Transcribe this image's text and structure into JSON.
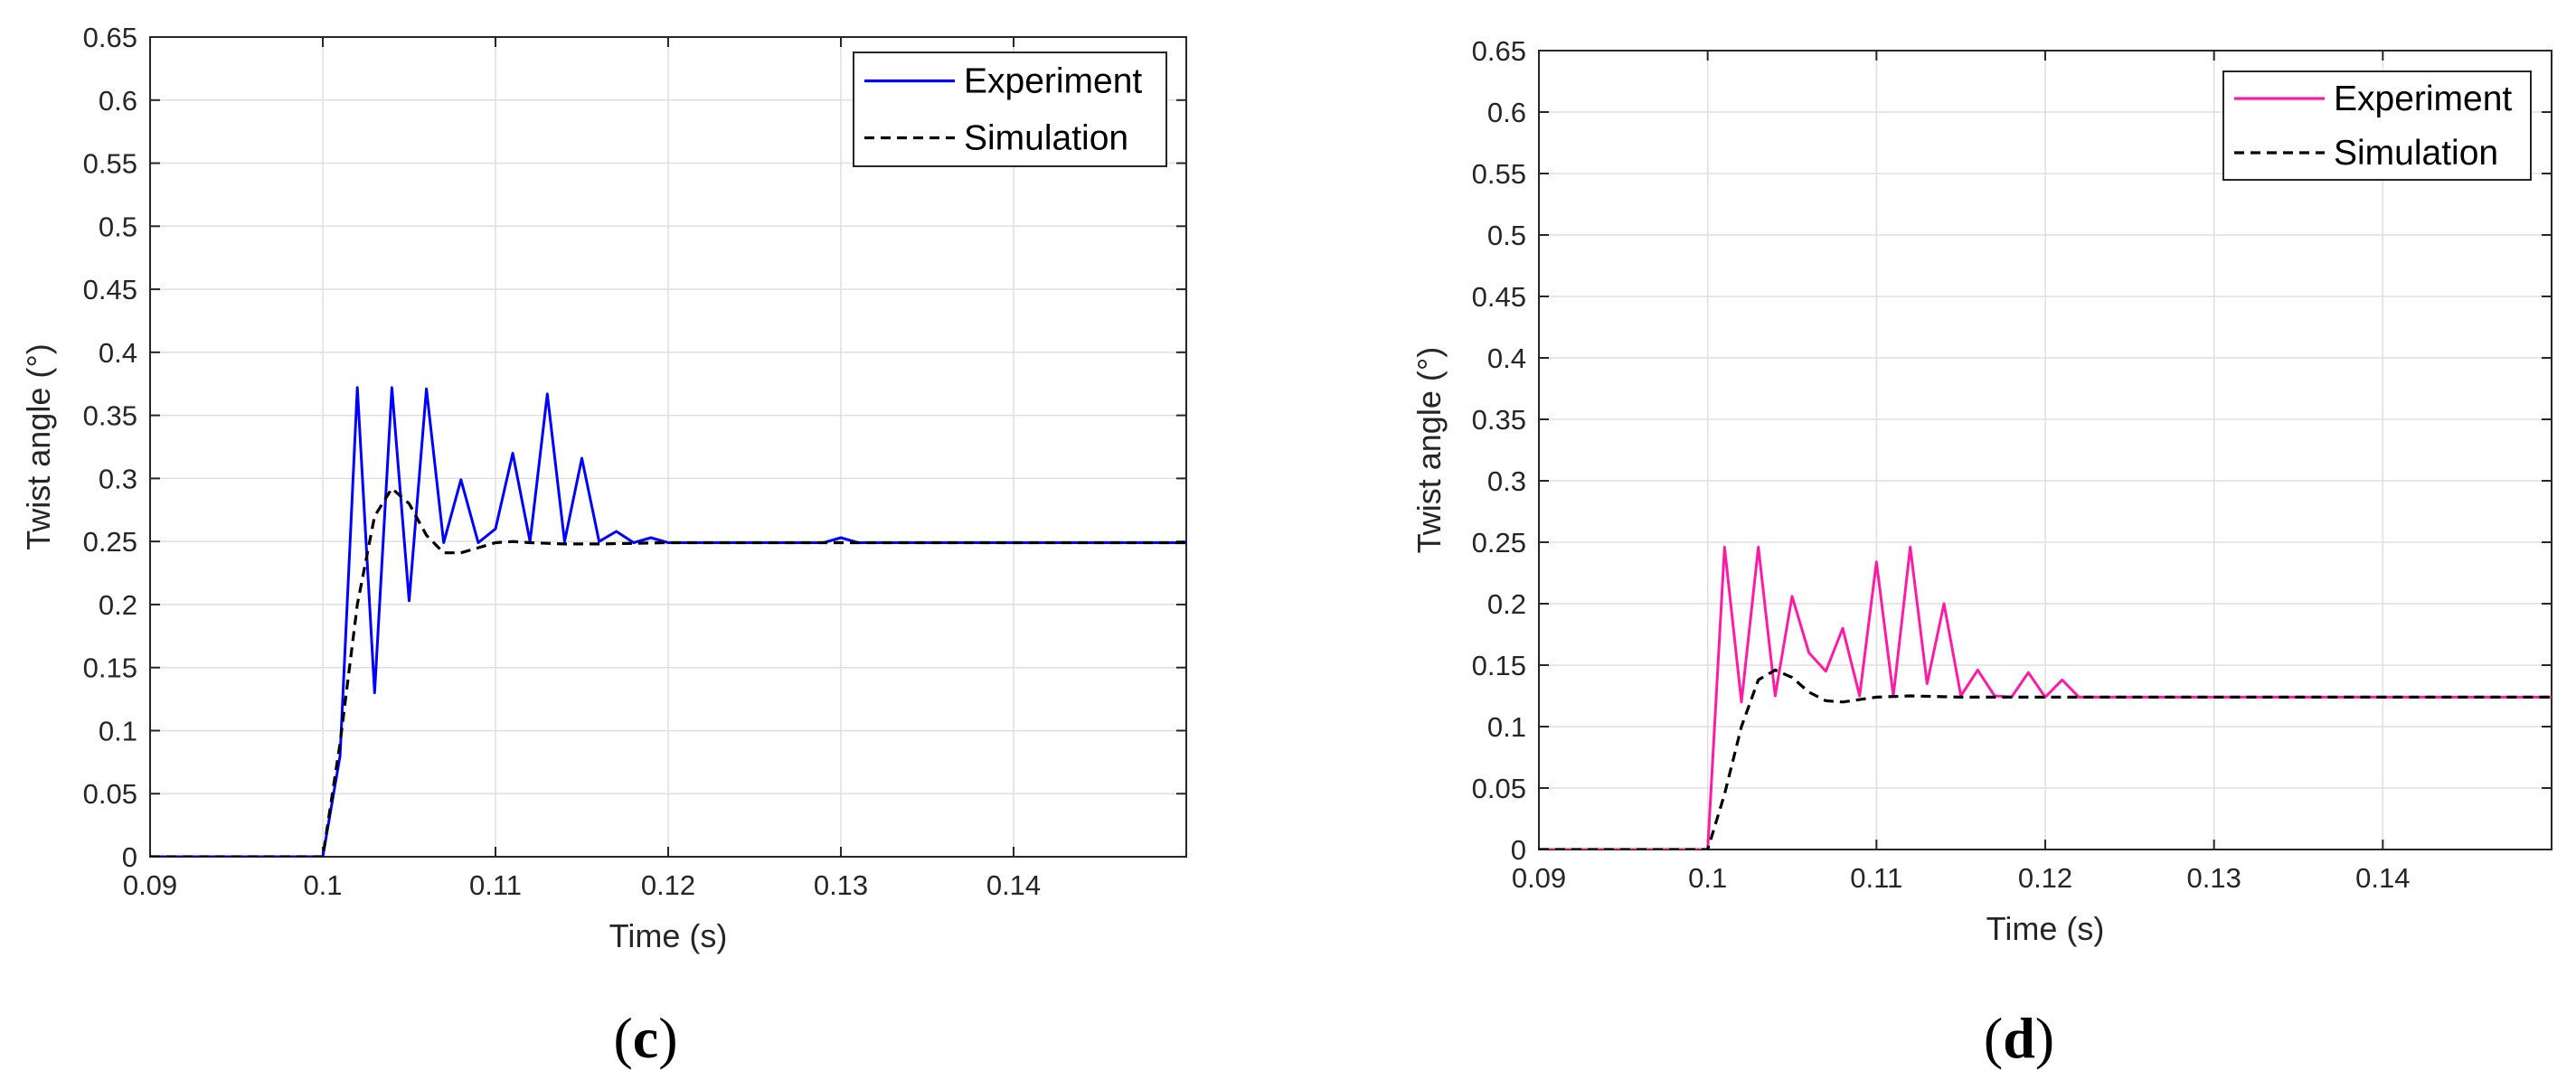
{
  "panels": [
    {
      "id": "c",
      "label_open": "(",
      "label_letter": "c",
      "label_close": ")",
      "chart_data": {
        "type": "line",
        "title": "",
        "xlabel": "Time (s)",
        "ylabel": "Twist angle (°)",
        "xlim": [
          0.09,
          0.15
        ],
        "ylim": [
          0,
          0.65
        ],
        "xticks": [
          0.09,
          0.1,
          0.11,
          0.12,
          0.13,
          0.14
        ],
        "xtick_labels": [
          "0.09",
          "0.1",
          "0.11",
          "0.12",
          "0.13",
          "0.14"
        ],
        "yticks": [
          0,
          0.05,
          0.1,
          0.15,
          0.2,
          0.25,
          0.3,
          0.35,
          0.4,
          0.45,
          0.5,
          0.55,
          0.6,
          0.65
        ],
        "ytick_labels": [
          "0",
          "0.05",
          "0.1",
          "0.15",
          "0.2",
          "0.25",
          "0.3",
          "0.35",
          "0.4",
          "0.45",
          "0.5",
          "0.55",
          "0.6",
          "0.65"
        ],
        "grid": true,
        "legend_position": "top-right",
        "series": [
          {
            "name": "Experiment",
            "color": "#0000ff",
            "style": "solid",
            "x": [
              0.09,
              0.1,
              0.101,
              0.102,
              0.103,
              0.104,
              0.105,
              0.106,
              0.107,
              0.108,
              0.109,
              0.11,
              0.111,
              0.112,
              0.113,
              0.114,
              0.115,
              0.116,
              0.117,
              0.118,
              0.119,
              0.12,
              0.125,
              0.129,
              0.13,
              0.131,
              0.15
            ],
            "y": [
              0,
              0,
              0.08,
              0.372,
              0.13,
              0.372,
              0.203,
              0.371,
              0.249,
              0.299,
              0.249,
              0.26,
              0.32,
              0.25,
              0.367,
              0.25,
              0.316,
              0.25,
              0.258,
              0.249,
              0.253,
              0.249,
              0.249,
              0.249,
              0.253,
              0.249,
              0.249
            ]
          },
          {
            "name": "Simulation",
            "color": "#000000",
            "style": "dashed",
            "x": [
              0.09,
              0.1,
              0.101,
              0.102,
              0.103,
              0.104,
              0.105,
              0.106,
              0.107,
              0.108,
              0.109,
              0.11,
              0.111,
              0.112,
              0.114,
              0.116,
              0.12,
              0.15
            ],
            "y": [
              0,
              0,
              0.09,
              0.2,
              0.27,
              0.292,
              0.28,
              0.255,
              0.241,
              0.241,
              0.245,
              0.249,
              0.25,
              0.249,
              0.248,
              0.248,
              0.249,
              0.249
            ]
          }
        ]
      }
    },
    {
      "id": "d",
      "label_open": "(",
      "label_letter": "d",
      "label_close": ")",
      "chart_data": {
        "type": "line",
        "title": "",
        "xlabel": "Time (s)",
        "ylabel": "Twist angle (°)",
        "xlim": [
          0.09,
          0.15
        ],
        "ylim": [
          0,
          0.65
        ],
        "xticks": [
          0.09,
          0.1,
          0.11,
          0.12,
          0.13,
          0.14
        ],
        "xtick_labels": [
          "0.09",
          "0.1",
          "0.11",
          "0.12",
          "0.13",
          "0.14"
        ],
        "yticks": [
          0,
          0.05,
          0.1,
          0.15,
          0.2,
          0.25,
          0.3,
          0.35,
          0.4,
          0.45,
          0.5,
          0.55,
          0.6,
          0.65
        ],
        "ytick_labels": [
          "0",
          "0.05",
          "0.1",
          "0.15",
          "0.2",
          "0.25",
          "0.3",
          "0.35",
          "0.4",
          "0.45",
          "0.5",
          "0.55",
          "0.6",
          "0.65"
        ],
        "grid": true,
        "legend_position": "top-right",
        "series": [
          {
            "name": "Experiment",
            "color": "#ff1aa5",
            "style": "solid",
            "x": [
              0.09,
              0.1,
              0.101,
              0.102,
              0.103,
              0.104,
              0.105,
              0.106,
              0.107,
              0.108,
              0.109,
              0.11,
              0.111,
              0.112,
              0.113,
              0.114,
              0.115,
              0.116,
              0.117,
              0.118,
              0.119,
              0.12,
              0.121,
              0.122,
              0.15
            ],
            "y": [
              0,
              0,
              0.246,
              0.12,
              0.246,
              0.125,
              0.206,
              0.16,
              0.145,
              0.18,
              0.125,
              0.234,
              0.125,
              0.246,
              0.135,
              0.2,
              0.125,
              0.146,
              0.125,
              0.124,
              0.144,
              0.124,
              0.138,
              0.124,
              0.124
            ]
          },
          {
            "name": "Simulation",
            "color": "#000000",
            "style": "dashed",
            "x": [
              0.09,
              0.1,
              0.101,
              0.102,
              0.103,
              0.104,
              0.105,
              0.106,
              0.107,
              0.108,
              0.109,
              0.11,
              0.112,
              0.115,
              0.15
            ],
            "y": [
              0,
              0,
              0.045,
              0.1,
              0.138,
              0.146,
              0.14,
              0.128,
              0.121,
              0.12,
              0.122,
              0.124,
              0.125,
              0.124,
              0.124
            ]
          }
        ]
      }
    }
  ]
}
